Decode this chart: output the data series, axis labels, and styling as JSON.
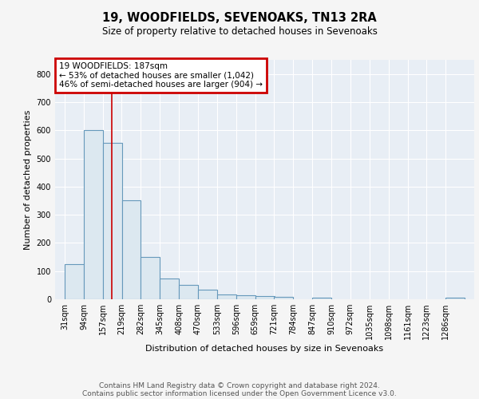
{
  "title1": "19, WOODFIELDS, SEVENOAKS, TN13 2RA",
  "title2": "Size of property relative to detached houses in Sevenoaks",
  "xlabel": "Distribution of detached houses by size in Sevenoaks",
  "ylabel": "Number of detached properties",
  "bin_labels": [
    "31sqm",
    "94sqm",
    "157sqm",
    "219sqm",
    "282sqm",
    "345sqm",
    "408sqm",
    "470sqm",
    "533sqm",
    "596sqm",
    "659sqm",
    "721sqm",
    "784sqm",
    "847sqm",
    "910sqm",
    "972sqm",
    "1035sqm",
    "1098sqm",
    "1161sqm",
    "1223sqm",
    "1286sqm"
  ],
  "bin_edges": [
    31,
    94,
    157,
    219,
    282,
    345,
    408,
    470,
    533,
    596,
    659,
    721,
    784,
    847,
    910,
    972,
    1035,
    1098,
    1161,
    1223,
    1286
  ],
  "bar_heights": [
    125,
    600,
    555,
    350,
    150,
    75,
    50,
    35,
    18,
    13,
    10,
    8,
    0,
    5,
    0,
    0,
    0,
    0,
    0,
    0,
    5
  ],
  "bar_color": "#dce8f0",
  "bar_edge_color": "#6699bb",
  "property_size": 187,
  "vline_color": "#cc0000",
  "annotation_line1": "19 WOODFIELDS: 187sqm",
  "annotation_line2": "← 53% of detached houses are smaller (1,042)",
  "annotation_line3": "46% of semi-detached houses are larger (904) →",
  "annotation_box_color": "#cc0000",
  "ylim": [
    0,
    850
  ],
  "yticks": [
    0,
    100,
    200,
    300,
    400,
    500,
    600,
    700,
    800
  ],
  "background_color": "#e8eef5",
  "grid_color": "#ffffff",
  "fig_bg_color": "#f5f5f5",
  "footer1": "Contains HM Land Registry data © Crown copyright and database right 2024.",
  "footer2": "Contains public sector information licensed under the Open Government Licence v3.0."
}
